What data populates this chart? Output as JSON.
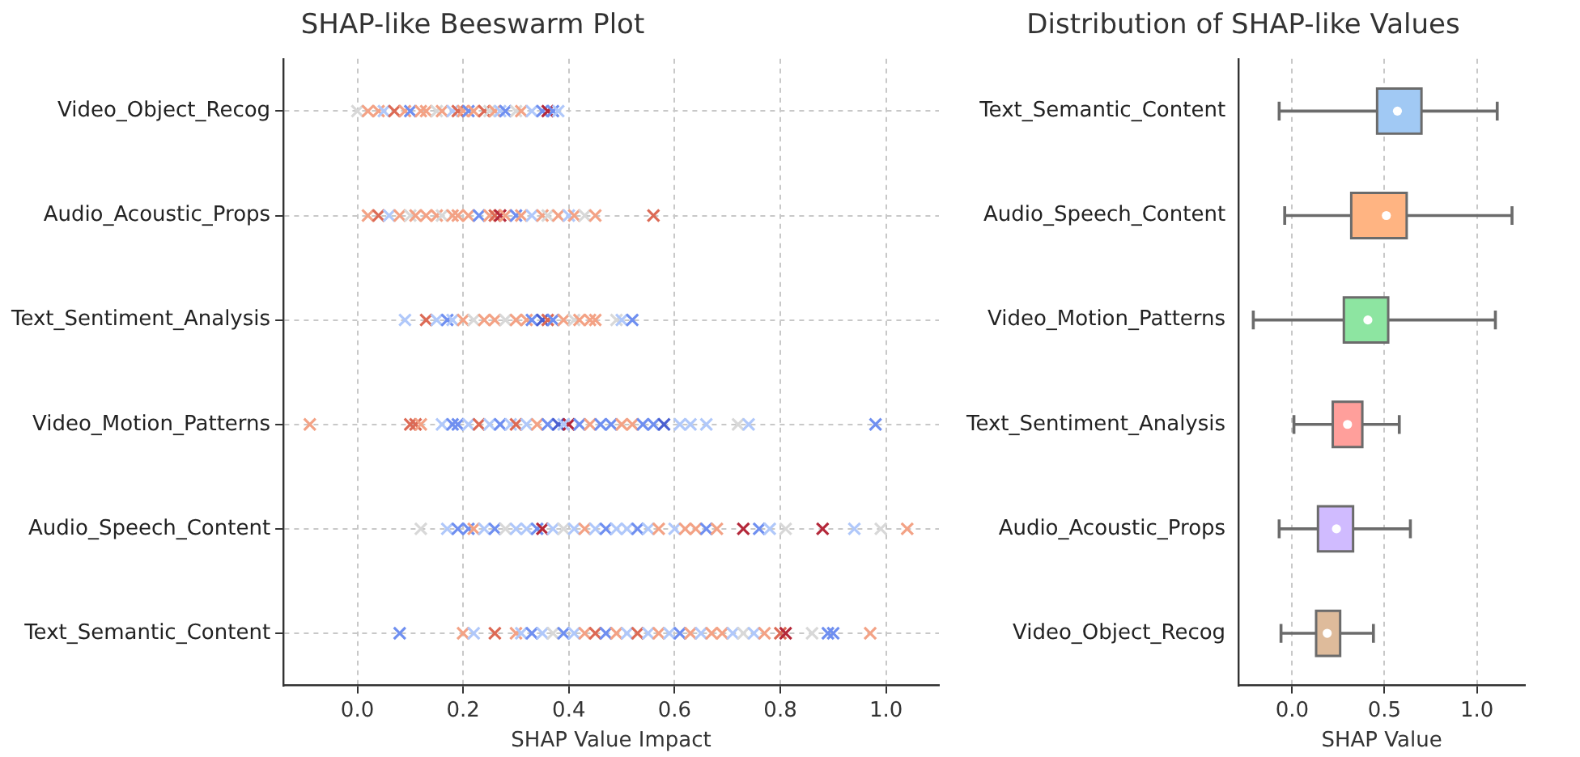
{
  "chart_data": [
    {
      "type": "scatter",
      "title": "SHAP-like Beeswarm Plot",
      "xlabel": "SHAP Value Impact",
      "orientation": "horizontal",
      "marker": "cross",
      "grid": true,
      "categories": [
        "Video_Object_Recog",
        "Audio_Acoustic_Props",
        "Text_Sentiment_Analysis",
        "Video_Motion_Patterns",
        "Audio_Speech_Content",
        "Text_Semantic_Content"
      ],
      "xlim": [
        -0.14,
        1.1
      ],
      "xticks": [
        {
          "value": 0,
          "label": "0.0"
        },
        {
          "value": 0.2,
          "label": "0.2"
        },
        {
          "value": 0.4,
          "label": "0.4"
        },
        {
          "value": 0.6,
          "label": "0.6"
        },
        {
          "value": 0.8,
          "label": "0.8"
        },
        {
          "value": 1,
          "label": "1.0"
        }
      ],
      "series": [
        {
          "type": "scatter",
          "x": [
            "Video_Object_Recog",
            "Video_Object_Recog",
            "Video_Object_Recog",
            "Video_Object_Recog",
            "Video_Object_Recog",
            "Video_Object_Recog",
            "Video_Object_Recog",
            "Video_Object_Recog",
            "Video_Object_Recog",
            "Video_Object_Recog",
            "Video_Object_Recog",
            "Video_Object_Recog",
            "Video_Object_Recog",
            "Video_Object_Recog",
            "Video_Object_Recog",
            "Video_Object_Recog",
            "Video_Object_Recog",
            "Video_Object_Recog",
            "Video_Object_Recog",
            "Video_Object_Recog",
            "Video_Object_Recog",
            "Video_Object_Recog",
            "Video_Object_Recog",
            "Video_Object_Recog",
            "Video_Object_Recog",
            "Video_Object_Recog",
            "Video_Object_Recog",
            "Video_Object_Recog"
          ],
          "values": [
            0.0,
            0.02,
            0.04,
            0.05,
            0.07,
            0.09,
            0.1,
            0.12,
            0.13,
            0.15,
            0.16,
            0.18,
            0.19,
            0.2,
            0.21,
            0.22,
            0.24,
            0.25,
            0.26,
            0.27,
            0.28,
            0.3,
            0.31,
            0.33,
            0.35,
            0.36,
            0.37,
            0.38
          ],
          "colors": [
            "#d8d8d8",
            "#f3a285",
            "#f3a285",
            "#b0c8fa",
            "#dc6a55",
            "#f3a285",
            "#6f8ff0",
            "#f3a285",
            "#f3a285",
            "#d8d8d8",
            "#f3a285",
            "#b0c8fa",
            "#dc6a55",
            "#f3a285",
            "#6f8ff0",
            "#f3a285",
            "#dc6a55",
            "#d8d8d8",
            "#f3a285",
            "#b0c8fa",
            "#6f8ff0",
            "#d8d8d8",
            "#f3a285",
            "#b0c8fa",
            "#6f8ff0",
            "#b4283a",
            "#6f8ff0",
            "#b0c8fa"
          ]
        },
        {
          "type": "scatter",
          "x": [
            "Audio_Acoustic_Props",
            "Audio_Acoustic_Props",
            "Audio_Acoustic_Props",
            "Audio_Acoustic_Props",
            "Audio_Acoustic_Props",
            "Audio_Acoustic_Props",
            "Audio_Acoustic_Props",
            "Audio_Acoustic_Props",
            "Audio_Acoustic_Props",
            "Audio_Acoustic_Props",
            "Audio_Acoustic_Props",
            "Audio_Acoustic_Props",
            "Audio_Acoustic_Props",
            "Audio_Acoustic_Props",
            "Audio_Acoustic_Props",
            "Audio_Acoustic_Props",
            "Audio_Acoustic_Props",
            "Audio_Acoustic_Props",
            "Audio_Acoustic_Props",
            "Audio_Acoustic_Props",
            "Audio_Acoustic_Props",
            "Audio_Acoustic_Props",
            "Audio_Acoustic_Props",
            "Audio_Acoustic_Props",
            "Audio_Acoustic_Props",
            "Audio_Acoustic_Props",
            "Audio_Acoustic_Props",
            "Audio_Acoustic_Props"
          ],
          "values": [
            0.02,
            0.04,
            0.06,
            0.08,
            0.1,
            0.11,
            0.13,
            0.15,
            0.16,
            0.18,
            0.19,
            0.21,
            0.23,
            0.25,
            0.26,
            0.27,
            0.28,
            0.3,
            0.31,
            0.33,
            0.35,
            0.36,
            0.38,
            0.4,
            0.41,
            0.43,
            0.45,
            0.56
          ],
          "colors": [
            "#f3a285",
            "#dc6a55",
            "#b0c8fa",
            "#f3a285",
            "#d8d8d8",
            "#f3a285",
            "#f3a285",
            "#f3a285",
            "#d8d8d8",
            "#f3a285",
            "#f3a285",
            "#f3a285",
            "#6f8ff0",
            "#f3a285",
            "#dc6a55",
            "#b4283a",
            "#f3a285",
            "#6f8ff0",
            "#f3a285",
            "#b0c8fa",
            "#f3a285",
            "#d8d8d8",
            "#f3a285",
            "#b0c8fa",
            "#f3a285",
            "#d8d8d8",
            "#f3a285",
            "#dc6a55"
          ]
        },
        {
          "type": "scatter",
          "x": [
            "Text_Sentiment_Analysis",
            "Text_Sentiment_Analysis",
            "Text_Sentiment_Analysis",
            "Text_Sentiment_Analysis",
            "Text_Sentiment_Analysis",
            "Text_Sentiment_Analysis",
            "Text_Sentiment_Analysis",
            "Text_Sentiment_Analysis",
            "Text_Sentiment_Analysis",
            "Text_Sentiment_Analysis",
            "Text_Sentiment_Analysis",
            "Text_Sentiment_Analysis",
            "Text_Sentiment_Analysis",
            "Text_Sentiment_Analysis",
            "Text_Sentiment_Analysis",
            "Text_Sentiment_Analysis",
            "Text_Sentiment_Analysis",
            "Text_Sentiment_Analysis",
            "Text_Sentiment_Analysis",
            "Text_Sentiment_Analysis",
            "Text_Sentiment_Analysis",
            "Text_Sentiment_Analysis",
            "Text_Sentiment_Analysis",
            "Text_Sentiment_Analysis"
          ],
          "values": [
            0.09,
            0.13,
            0.15,
            0.17,
            0.18,
            0.2,
            0.22,
            0.24,
            0.26,
            0.28,
            0.3,
            0.32,
            0.33,
            0.35,
            0.36,
            0.37,
            0.39,
            0.41,
            0.42,
            0.44,
            0.45,
            0.49,
            0.5,
            0.52
          ],
          "colors": [
            "#b0c8fa",
            "#dc6a55",
            "#b0c8fa",
            "#6f8ff0",
            "#b0c8fa",
            "#f3a285",
            "#d8d8d8",
            "#f3a285",
            "#f3a285",
            "#d8d8d8",
            "#f3a285",
            "#f3a285",
            "#6f8ff0",
            "#4a5fd0",
            "#dc6a55",
            "#6f8ff0",
            "#f3a285",
            "#d8d8d8",
            "#f3a285",
            "#f3a285",
            "#f3a285",
            "#d8d8d8",
            "#b0c8fa",
            "#6f8ff0"
          ]
        },
        {
          "type": "scatter",
          "x": [
            "Video_Motion_Patterns",
            "Video_Motion_Patterns",
            "Video_Motion_Patterns",
            "Video_Motion_Patterns",
            "Video_Motion_Patterns",
            "Video_Motion_Patterns",
            "Video_Motion_Patterns",
            "Video_Motion_Patterns",
            "Video_Motion_Patterns",
            "Video_Motion_Patterns",
            "Video_Motion_Patterns",
            "Video_Motion_Patterns",
            "Video_Motion_Patterns",
            "Video_Motion_Patterns",
            "Video_Motion_Patterns",
            "Video_Motion_Patterns",
            "Video_Motion_Patterns",
            "Video_Motion_Patterns",
            "Video_Motion_Patterns",
            "Video_Motion_Patterns",
            "Video_Motion_Patterns",
            "Video_Motion_Patterns",
            "Video_Motion_Patterns",
            "Video_Motion_Patterns",
            "Video_Motion_Patterns",
            "Video_Motion_Patterns",
            "Video_Motion_Patterns",
            "Video_Motion_Patterns",
            "Video_Motion_Patterns",
            "Video_Motion_Patterns",
            "Video_Motion_Patterns",
            "Video_Motion_Patterns",
            "Video_Motion_Patterns",
            "Video_Motion_Patterns"
          ],
          "values": [
            -0.09,
            0.1,
            0.11,
            0.12,
            0.16,
            0.18,
            0.19,
            0.21,
            0.23,
            0.25,
            0.27,
            0.29,
            0.3,
            0.32,
            0.34,
            0.36,
            0.38,
            0.4,
            0.42,
            0.44,
            0.46,
            0.48,
            0.5,
            0.52,
            0.54,
            0.56,
            0.58,
            0.61,
            0.63,
            0.66,
            0.72,
            0.74,
            0.98,
            0.39
          ],
          "colors": [
            "#f3a285",
            "#dc6a55",
            "#dc6a55",
            "#f3a285",
            "#b0c8fa",
            "#6f8ff0",
            "#6f8ff0",
            "#b0c8fa",
            "#dc6a55",
            "#b0c8fa",
            "#6f8ff0",
            "#b0c8fa",
            "#dc6a55",
            "#b0c8fa",
            "#f3a285",
            "#6f8ff0",
            "#4a5fd0",
            "#b4283a",
            "#6f8ff0",
            "#f3a285",
            "#6f8ff0",
            "#6f8ff0",
            "#f3a285",
            "#f3a285",
            "#6f8ff0",
            "#6f8ff0",
            "#4a5fd0",
            "#b0c8fa",
            "#b0c8fa",
            "#b0c8fa",
            "#d8d8d8",
            "#b0c8fa",
            "#6f8ff0",
            "#b0c8fa"
          ]
        },
        {
          "type": "scatter",
          "x": [
            "Audio_Speech_Content",
            "Audio_Speech_Content",
            "Audio_Speech_Content",
            "Audio_Speech_Content",
            "Audio_Speech_Content",
            "Audio_Speech_Content",
            "Audio_Speech_Content",
            "Audio_Speech_Content",
            "Audio_Speech_Content",
            "Audio_Speech_Content",
            "Audio_Speech_Content",
            "Audio_Speech_Content",
            "Audio_Speech_Content",
            "Audio_Speech_Content",
            "Audio_Speech_Content",
            "Audio_Speech_Content",
            "Audio_Speech_Content",
            "Audio_Speech_Content",
            "Audio_Speech_Content",
            "Audio_Speech_Content",
            "Audio_Speech_Content",
            "Audio_Speech_Content",
            "Audio_Speech_Content",
            "Audio_Speech_Content",
            "Audio_Speech_Content",
            "Audio_Speech_Content",
            "Audio_Speech_Content",
            "Audio_Speech_Content",
            "Audio_Speech_Content",
            "Audio_Speech_Content",
            "Audio_Speech_Content",
            "Audio_Speech_Content",
            "Audio_Speech_Content",
            "Audio_Speech_Content",
            "Audio_Speech_Content",
            "Audio_Speech_Content"
          ],
          "values": [
            0.12,
            0.17,
            0.19,
            0.21,
            0.22,
            0.24,
            0.26,
            0.28,
            0.3,
            0.32,
            0.34,
            0.35,
            0.37,
            0.39,
            0.41,
            0.43,
            0.45,
            0.47,
            0.49,
            0.51,
            0.53,
            0.55,
            0.57,
            0.6,
            0.62,
            0.64,
            0.66,
            0.68,
            0.73,
            0.76,
            0.78,
            0.81,
            0.88,
            0.94,
            0.99,
            1.04
          ],
          "colors": [
            "#d8d8d8",
            "#b0c8fa",
            "#6f8ff0",
            "#6f8ff0",
            "#f3a285",
            "#b0c8fa",
            "#6f8ff0",
            "#d8d8d8",
            "#b0c8fa",
            "#b0c8fa",
            "#6f8ff0",
            "#b4283a",
            "#b0c8fa",
            "#d8d8d8",
            "#b0c8fa",
            "#f3a285",
            "#b0c8fa",
            "#6f8ff0",
            "#b0c8fa",
            "#b0c8fa",
            "#6f8ff0",
            "#b0c8fa",
            "#f3a285",
            "#b0c8fa",
            "#f3a285",
            "#f3a285",
            "#6f8ff0",
            "#f3a285",
            "#b4283a",
            "#6f8ff0",
            "#b0c8fa",
            "#d8d8d8",
            "#b4283a",
            "#b0c8fa",
            "#d8d8d8",
            "#f3a285"
          ]
        },
        {
          "type": "scatter",
          "x": [
            "Text_Semantic_Content",
            "Text_Semantic_Content",
            "Text_Semantic_Content",
            "Text_Semantic_Content",
            "Text_Semantic_Content",
            "Text_Semantic_Content",
            "Text_Semantic_Content",
            "Text_Semantic_Content",
            "Text_Semantic_Content",
            "Text_Semantic_Content",
            "Text_Semantic_Content",
            "Text_Semantic_Content",
            "Text_Semantic_Content",
            "Text_Semantic_Content",
            "Text_Semantic_Content",
            "Text_Semantic_Content",
            "Text_Semantic_Content",
            "Text_Semantic_Content",
            "Text_Semantic_Content",
            "Text_Semantic_Content",
            "Text_Semantic_Content",
            "Text_Semantic_Content",
            "Text_Semantic_Content",
            "Text_Semantic_Content",
            "Text_Semantic_Content",
            "Text_Semantic_Content",
            "Text_Semantic_Content",
            "Text_Semantic_Content",
            "Text_Semantic_Content",
            "Text_Semantic_Content",
            "Text_Semantic_Content",
            "Text_Semantic_Content",
            "Text_Semantic_Content",
            "Text_Semantic_Content",
            "Text_Semantic_Content"
          ],
          "values": [
            0.08,
            0.2,
            0.22,
            0.26,
            0.3,
            0.31,
            0.33,
            0.35,
            0.37,
            0.39,
            0.41,
            0.43,
            0.45,
            0.47,
            0.49,
            0.51,
            0.53,
            0.55,
            0.57,
            0.59,
            0.61,
            0.63,
            0.65,
            0.67,
            0.69,
            0.71,
            0.73,
            0.75,
            0.77,
            0.8,
            0.81,
            0.86,
            0.89,
            0.9,
            0.97
          ],
          "colors": [
            "#6f8ff0",
            "#f3a285",
            "#b0c8fa",
            "#dc6a55",
            "#f3a285",
            "#b0c8fa",
            "#6f8ff0",
            "#b0c8fa",
            "#d8d8d8",
            "#6f8ff0",
            "#b0c8fa",
            "#f3a285",
            "#dc6a55",
            "#6f8ff0",
            "#f3a285",
            "#b0c8fa",
            "#dc6a55",
            "#b0c8fa",
            "#f3a285",
            "#b0c8fa",
            "#6f8ff0",
            "#f3a285",
            "#b0c8fa",
            "#f3a285",
            "#f3a285",
            "#b0c8fa",
            "#d8d8d8",
            "#b0c8fa",
            "#f3a285",
            "#dc6a55",
            "#b4283a",
            "#d8d8d8",
            "#6f8ff0",
            "#6f8ff0",
            "#f3a285"
          ]
        }
      ]
    },
    {
      "type": "box",
      "title": "Distribution of SHAP-like Values",
      "xlabel": "SHAP Value",
      "orientation": "horizontal",
      "grid": "x",
      "categories": [
        "Text_Semantic_Content",
        "Audio_Speech_Content",
        "Video_Motion_Patterns",
        "Text_Sentiment_Analysis",
        "Audio_Acoustic_Props",
        "Video_Object_Recog"
      ],
      "colors": [
        "#a1c9f4",
        "#ffb482",
        "#8de5a1",
        "#ff9f9b",
        "#d0bbff",
        "#debb9b"
      ],
      "xlim": [
        -0.29,
        1.26
      ],
      "xticks": [
        {
          "value": 0,
          "label": "0.0"
        },
        {
          "value": 0.5,
          "label": "0.5"
        },
        {
          "value": 1,
          "label": "1.0"
        }
      ],
      "boxes": [
        {
          "low": -0.07,
          "q1": 0.46,
          "median": 0.57,
          "q3": 0.7,
          "high": 1.11
        },
        {
          "low": -0.04,
          "q1": 0.32,
          "median": 0.51,
          "q3": 0.62,
          "high": 1.19
        },
        {
          "low": -0.21,
          "q1": 0.28,
          "median": 0.41,
          "q3": 0.52,
          "high": 1.1
        },
        {
          "low": 0.01,
          "q1": 0.22,
          "median": 0.3,
          "q3": 0.38,
          "high": 0.58
        },
        {
          "low": -0.07,
          "q1": 0.14,
          "median": 0.24,
          "q3": 0.33,
          "high": 0.64
        },
        {
          "low": -0.06,
          "q1": 0.13,
          "median": 0.19,
          "q3": 0.26,
          "high": 0.44
        }
      ]
    }
  ]
}
